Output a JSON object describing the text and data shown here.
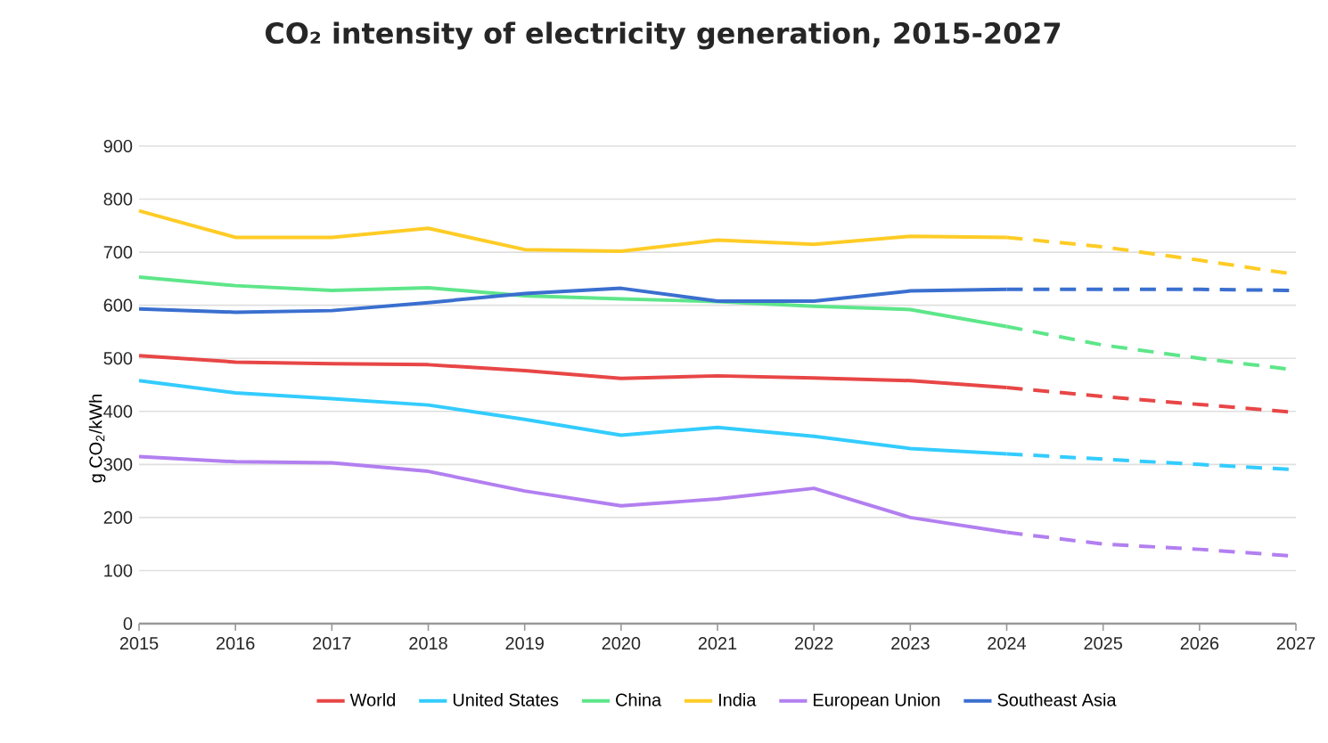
{
  "chart_data": {
    "type": "line",
    "title": "CO₂ intensity of electricity generation, 2015-2027",
    "ylabel": "g CO$_{2}$/kWh",
    "xlim": [
      2015,
      2027
    ],
    "xticks": [
      2015,
      2016,
      2017,
      2018,
      2019,
      2020,
      2021,
      2022,
      2023,
      2024,
      2025,
      2026,
      2027
    ],
    "ylim": [
      0,
      900
    ],
    "yticks": [
      0,
      100,
      200,
      300,
      400,
      500,
      600,
      700,
      800,
      900
    ],
    "grid": "y",
    "legend": "bottom",
    "marker": "none",
    "series": [
      {
        "name": "World",
        "color": "#e84646",
        "line_style": "solid",
        "x": [
          2015,
          2016,
          2017,
          2018,
          2019,
          2020,
          2021,
          2022,
          2023,
          2024
        ],
        "values": [
          505,
          493,
          490,
          488,
          477,
          462,
          467,
          463,
          458,
          445
        ]
      },
      {
        "name": "United States",
        "color": "#33ccff",
        "line_style": "solid",
        "x": [
          2015,
          2016,
          2017,
          2018,
          2019,
          2020,
          2021,
          2022,
          2023,
          2024
        ],
        "values": [
          458,
          435,
          424,
          412,
          385,
          355,
          370,
          353,
          330,
          320
        ]
      },
      {
        "name": "China",
        "color": "#5ee68a",
        "line_style": "solid",
        "x": [
          2015,
          2016,
          2017,
          2018,
          2019,
          2020,
          2021,
          2022,
          2023,
          2024
        ],
        "values": [
          653,
          637,
          628,
          633,
          618,
          612,
          607,
          598,
          592,
          560
        ]
      },
      {
        "name": "India",
        "color": "#ffcc26",
        "line_style": "solid",
        "x": [
          2015,
          2016,
          2017,
          2018,
          2019,
          2020,
          2021,
          2022,
          2023,
          2024
        ],
        "values": [
          778,
          728,
          728,
          745,
          705,
          702,
          723,
          715,
          730,
          728
        ]
      },
      {
        "name": "European Union",
        "color": "#b27ff0",
        "line_style": "solid",
        "x": [
          2015,
          2016,
          2017,
          2018,
          2019,
          2020,
          2021,
          2022,
          2023,
          2024
        ],
        "values": [
          315,
          305,
          303,
          287,
          250,
          222,
          235,
          255,
          200,
          172
        ]
      },
      {
        "name": "Southeast Asia",
        "color": "#3a6fcf",
        "line_style": "solid",
        "x": [
          2015,
          2016,
          2017,
          2018,
          2019,
          2020,
          2021,
          2022,
          2023,
          2024
        ],
        "values": [
          593,
          587,
          590,
          605,
          622,
          632,
          608,
          608,
          627,
          630
        ]
      },
      {
        "color": "#e84646",
        "line_style": "dashed",
        "x": [
          2024,
          2025,
          2026,
          2027
        ],
        "values": [
          445,
          428,
          413,
          398
        ]
      },
      {
        "color": "#33ccff",
        "line_style": "dashed",
        "x": [
          2024,
          2025,
          2026,
          2027
        ],
        "values": [
          320,
          310,
          300,
          290
        ]
      },
      {
        "color": "#5ee68a",
        "line_style": "dashed",
        "x": [
          2024,
          2025,
          2026,
          2027
        ],
        "values": [
          560,
          525,
          500,
          478
        ]
      },
      {
        "color": "#ffcc26",
        "line_style": "dashed",
        "x": [
          2024,
          2025,
          2026,
          2027
        ],
        "values": [
          728,
          710,
          685,
          658
        ]
      },
      {
        "color": "#b27ff0",
        "line_style": "dashed",
        "x": [
          2024,
          2025,
          2026,
          2027
        ],
        "values": [
          172,
          150,
          140,
          127
        ]
      },
      {
        "color": "#3a6fcf",
        "line_style": "dashed",
        "x": [
          2024,
          2025,
          2026,
          2027
        ],
        "values": [
          630,
          630,
          630,
          628
        ]
      }
    ]
  }
}
